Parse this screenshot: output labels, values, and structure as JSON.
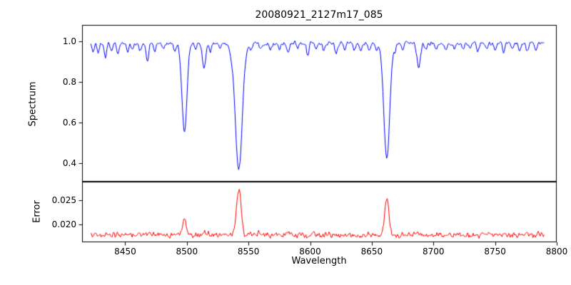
{
  "figure": {
    "background": "#ffffff",
    "frame_color": "#000000",
    "text_color": "#000000"
  },
  "chart_data": [
    {
      "type": "line",
      "panel": "spectrum",
      "title": "20080921_2127m17_085",
      "ylabel": "Spectrum",
      "color": "#0000ff",
      "xlim": [
        8415,
        8800
      ],
      "x_range": [
        8422,
        8790
      ],
      "ylim": [
        0.31,
        1.08
      ],
      "yticks": [
        0.4,
        0.6,
        0.8,
        1.0
      ],
      "ytick_labels": [
        "0.4",
        "0.6",
        "0.8",
        "1.0"
      ],
      "grid": false,
      "legend": "none",
      "continuum": 0.99,
      "noise_amplitude": 0.018,
      "absorption_lines": [
        {
          "center": 8424,
          "depth": 0.04,
          "sigma": 0.9
        },
        {
          "center": 8428,
          "depth": 0.05,
          "sigma": 0.9
        },
        {
          "center": 8434,
          "depth": 0.07,
          "sigma": 1.0
        },
        {
          "center": 8439,
          "depth": 0.04,
          "sigma": 0.9
        },
        {
          "center": 8444,
          "depth": 0.05,
          "sigma": 1.0
        },
        {
          "center": 8452,
          "depth": 0.04,
          "sigma": 0.9
        },
        {
          "center": 8456,
          "depth": 0.03,
          "sigma": 0.9
        },
        {
          "center": 8462,
          "depth": 0.04,
          "sigma": 0.9
        },
        {
          "center": 8468,
          "depth": 0.09,
          "sigma": 1.1
        },
        {
          "center": 8474,
          "depth": 0.04,
          "sigma": 0.9
        },
        {
          "center": 8481,
          "depth": 0.03,
          "sigma": 0.9
        },
        {
          "center": 8490,
          "depth": 0.04,
          "sigma": 0.9
        },
        {
          "center": 8498.02,
          "depth": 0.44,
          "sigma": 2.0
        },
        {
          "center": 8507,
          "depth": 0.03,
          "sigma": 0.9
        },
        {
          "center": 8514,
          "depth": 0.12,
          "sigma": 1.3
        },
        {
          "center": 8519,
          "depth": 0.04,
          "sigma": 0.9
        },
        {
          "center": 8527,
          "depth": 0.03,
          "sigma": 0.9
        },
        {
          "center": 8536,
          "depth": 0.03,
          "sigma": 0.9
        },
        {
          "center": 8542.09,
          "depth": 0.62,
          "sigma": 2.8
        },
        {
          "center": 8552,
          "depth": 0.03,
          "sigma": 0.9
        },
        {
          "center": 8560,
          "depth": 0.03,
          "sigma": 0.9
        },
        {
          "center": 8568,
          "depth": 0.03,
          "sigma": 0.9
        },
        {
          "center": 8575,
          "depth": 0.03,
          "sigma": 0.9
        },
        {
          "center": 8582,
          "depth": 0.05,
          "sigma": 1.0
        },
        {
          "center": 8590,
          "depth": 0.03,
          "sigma": 0.9
        },
        {
          "center": 8598,
          "depth": 0.06,
          "sigma": 1.0
        },
        {
          "center": 8605,
          "depth": 0.03,
          "sigma": 0.9
        },
        {
          "center": 8611,
          "depth": 0.04,
          "sigma": 0.9
        },
        {
          "center": 8621,
          "depth": 0.05,
          "sigma": 1.0
        },
        {
          "center": 8628,
          "depth": 0.03,
          "sigma": 0.9
        },
        {
          "center": 8636,
          "depth": 0.03,
          "sigma": 0.9
        },
        {
          "center": 8641,
          "depth": 0.03,
          "sigma": 0.9
        },
        {
          "center": 8648,
          "depth": 0.04,
          "sigma": 1.0
        },
        {
          "center": 8654,
          "depth": 0.03,
          "sigma": 0.9
        },
        {
          "center": 8662.14,
          "depth": 0.57,
          "sigma": 2.4
        },
        {
          "center": 8669,
          "depth": 0.03,
          "sigma": 0.9
        },
        {
          "center": 8675,
          "depth": 0.04,
          "sigma": 0.9
        },
        {
          "center": 8688,
          "depth": 0.12,
          "sigma": 1.4
        },
        {
          "center": 8694,
          "depth": 0.03,
          "sigma": 0.9
        },
        {
          "center": 8702,
          "depth": 0.03,
          "sigma": 0.9
        },
        {
          "center": 8710,
          "depth": 0.04,
          "sigma": 1.0
        },
        {
          "center": 8717,
          "depth": 0.03,
          "sigma": 0.9
        },
        {
          "center": 8724,
          "depth": 0.03,
          "sigma": 0.9
        },
        {
          "center": 8730,
          "depth": 0.03,
          "sigma": 0.9
        },
        {
          "center": 8736,
          "depth": 0.04,
          "sigma": 1.0
        },
        {
          "center": 8743,
          "depth": 0.03,
          "sigma": 0.9
        },
        {
          "center": 8750,
          "depth": 0.03,
          "sigma": 0.9
        },
        {
          "center": 8757,
          "depth": 0.04,
          "sigma": 0.9
        },
        {
          "center": 8764,
          "depth": 0.03,
          "sigma": 0.9
        },
        {
          "center": 8770,
          "depth": 0.04,
          "sigma": 0.9
        },
        {
          "center": 8776,
          "depth": 0.04,
          "sigma": 0.9
        },
        {
          "center": 8783,
          "depth": 0.03,
          "sigma": 0.9
        }
      ]
    },
    {
      "type": "line",
      "panel": "error",
      "ylabel": "Error",
      "xlabel": "Wavelength",
      "color": "#ff0000",
      "xlim": [
        8415,
        8800
      ],
      "x_range": [
        8422,
        8790
      ],
      "ylim": [
        0.0163,
        0.0288
      ],
      "yticks": [
        0.02,
        0.025
      ],
      "ytick_labels": [
        "0.020",
        "0.025"
      ],
      "xticks": [
        8450,
        8500,
        8550,
        8600,
        8650,
        8700,
        8750,
        8800
      ],
      "xtick_labels": [
        "8450",
        "8500",
        "8550",
        "8600",
        "8650",
        "8700",
        "8750",
        "8800"
      ],
      "grid": false,
      "legend": "none",
      "baseline": 0.0178,
      "noise_amplitude": 0.0012,
      "peaks": [
        {
          "center": 8468,
          "amplitude": 0.0005,
          "sigma": 1.2
        },
        {
          "center": 8498.02,
          "amplitude": 0.0034,
          "sigma": 1.5
        },
        {
          "center": 8514,
          "amplitude": 0.0009,
          "sigma": 1.2
        },
        {
          "center": 8542.09,
          "amplitude": 0.0096,
          "sigma": 1.8
        },
        {
          "center": 8582,
          "amplitude": 0.0004,
          "sigma": 1.0
        },
        {
          "center": 8662.14,
          "amplitude": 0.0076,
          "sigma": 1.7
        },
        {
          "center": 8688,
          "amplitude": 0.0008,
          "sigma": 1.3
        }
      ]
    }
  ]
}
